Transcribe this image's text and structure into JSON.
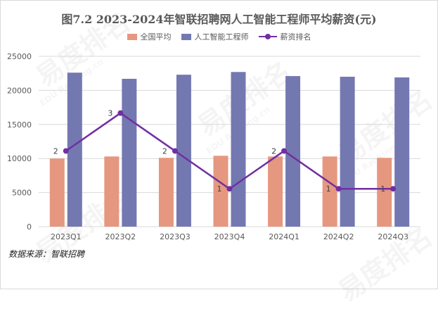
{
  "title": "图7.2  2023-2024年智联招聘网人工智能工程师平均薪资(元)",
  "source": "数据来源：智联招聘",
  "watermark": {
    "text": "易度排名",
    "sub": "EDU Ranking.cn"
  },
  "colors": {
    "national": "#e6977f",
    "ai": "#7478b1",
    "rank": "#7030a0"
  },
  "chart_data": {
    "type": "bar",
    "categories": [
      "2023Q1",
      "2023Q2",
      "2023Q3",
      "2023Q4",
      "2024Q1",
      "2024Q2",
      "2024Q3"
    ],
    "series": [
      {
        "name": "全国平均",
        "type": "bar",
        "values": [
          10000,
          10300,
          10100,
          10400,
          10300,
          10300,
          10100
        ]
      },
      {
        "name": "人工智能工程师",
        "type": "bar",
        "values": [
          22600,
          21700,
          22300,
          22700,
          22100,
          22000,
          21900
        ]
      },
      {
        "name": "薪资排名",
        "type": "line",
        "axis": "secondary",
        "values": [
          2,
          3,
          2,
          1,
          2,
          1,
          1
        ],
        "labels": [
          "2",
          "3",
          "2",
          "1",
          "2",
          "1",
          "1"
        ]
      }
    ],
    "ylim": [
      0,
      25000
    ],
    "yticks": [
      "0",
      "5000",
      "10000",
      "15000",
      "20000",
      "25000"
    ],
    "secondary_ylim": [
      0,
      4.5
    ],
    "grid": true,
    "legend": "top"
  }
}
